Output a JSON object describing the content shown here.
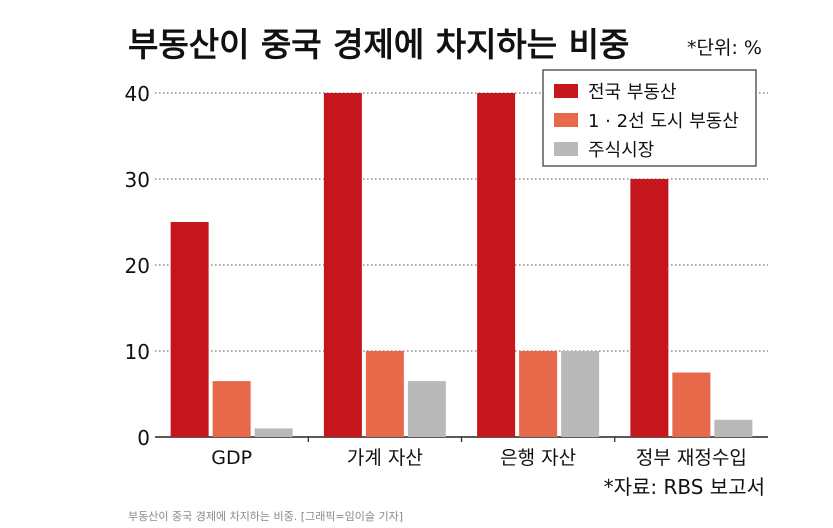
{
  "chart_data": {
    "type": "bar",
    "title": "부동산이 중국 경제에 차지하는 비중",
    "unit_note": "*단위: %",
    "source_note": "*자료: RBS 보고서",
    "categories": [
      "GDP",
      "가계 자산",
      "은행 자산",
      "정부 재정수입"
    ],
    "series": [
      {
        "name": "전국 부동산",
        "values": [
          25,
          40,
          40,
          30
        ],
        "color": "#c4161c"
      },
      {
        "name": "1 · 2선 도시 부동산",
        "values": [
          6.5,
          10,
          10,
          7.5
        ],
        "color": "#e8684a"
      },
      {
        "name": "주식시장",
        "values": [
          1,
          6.5,
          10,
          2
        ],
        "color": "#b9b9b9"
      }
    ],
    "yticks": [
      0,
      10,
      20,
      30,
      40
    ],
    "ylim": [
      0,
      40
    ],
    "grid": true,
    "legend_position": "top-right"
  },
  "caption": "부동산이 중국 경제에 차지하는 비중. [그래픽=임이슬 기자]"
}
